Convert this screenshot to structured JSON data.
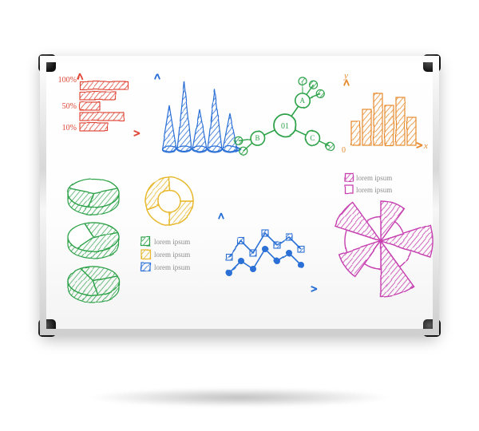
{
  "colors": {
    "red": "#e04a3a",
    "blue": "#2a6fd6",
    "green": "#2ea24a",
    "orange": "#e78b2d",
    "magenta": "#c63fb0",
    "yellow": "#e8b92e",
    "legend_text": "#8e8e8e"
  },
  "bar_h": {
    "labels": [
      "100%",
      "50%",
      "10%"
    ],
    "bars": [
      60,
      45,
      25,
      55,
      35
    ],
    "color": "#e04a3a",
    "label_fontsize": 10
  },
  "cones": {
    "heights": [
      55,
      85,
      50,
      75,
      45
    ],
    "color": "#2a6fd6"
  },
  "network": {
    "center_label": "01",
    "nodes": [
      "A",
      "B",
      "C"
    ],
    "leaf_counts": [
      3,
      2,
      1
    ],
    "color": "#2ea24a",
    "label_fontsize": 9
  },
  "bar_v": {
    "x_label": "x",
    "y_label": "y",
    "origin_label": "0",
    "values": [
      30,
      45,
      65,
      50,
      60,
      35
    ],
    "color": "#e78b2d"
  },
  "pies": {
    "slices": [
      [
        120,
        100,
        140
      ],
      [
        150,
        120,
        90
      ],
      [
        100,
        160,
        100
      ]
    ],
    "color": "#2ea24a"
  },
  "donut": {
    "segments": [
      90,
      70,
      110,
      90
    ],
    "color": "#e8b92e"
  },
  "scatter": {
    "series1": [
      [
        10,
        40
      ],
      [
        25,
        60
      ],
      [
        40,
        45
      ],
      [
        55,
        70
      ],
      [
        70,
        55
      ],
      [
        85,
        65
      ],
      [
        100,
        50
      ]
    ],
    "series2": [
      [
        10,
        20
      ],
      [
        25,
        35
      ],
      [
        40,
        25
      ],
      [
        55,
        50
      ],
      [
        70,
        35
      ],
      [
        85,
        45
      ],
      [
        100,
        30
      ]
    ],
    "color": "#2a6fd6"
  },
  "polar": {
    "sectors": [
      50,
      30,
      65,
      40,
      70,
      35,
      55,
      45,
      60,
      30
    ],
    "color": "#c63fb0"
  },
  "legend_center": {
    "items": [
      "lorem ipsum",
      "lorem ipsum",
      "lorem ipsum"
    ],
    "swatch_colors": [
      "#2ea24a",
      "#e8b92e",
      "#2a6fd6"
    ],
    "fontsize": 9
  },
  "legend_right": {
    "items": [
      "lorem ipsum",
      "lorem ipsum"
    ],
    "swatch_colors": [
      "#c63fb0",
      "#c63fb0"
    ],
    "fontsize": 9
  }
}
